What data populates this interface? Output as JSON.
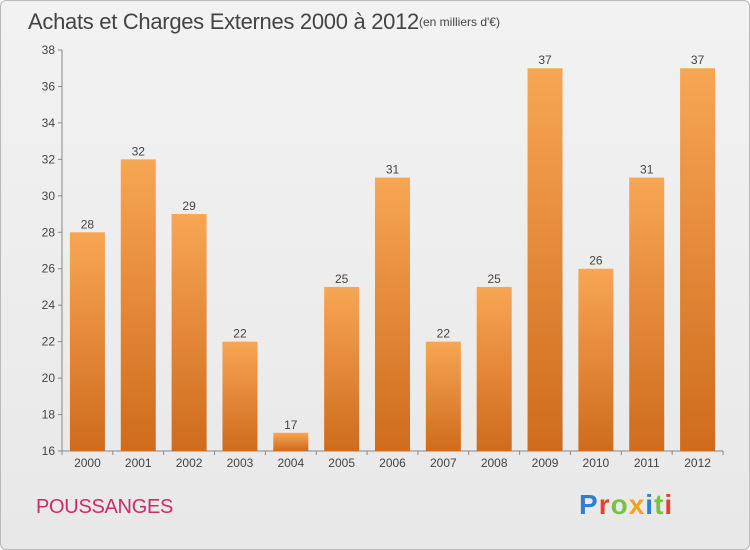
{
  "header": {
    "title": "Achats et Charges Externes 2000 à 2012",
    "subtitle": "(en milliers d'€)"
  },
  "footer": {
    "commune": "POUSSANGES",
    "logo_text": "Proxiti"
  },
  "colors": {
    "bar_light": "#f7a654",
    "bar_dark": "#cf6b1d",
    "commune_text": "#cc2a6c",
    "logo_letters": [
      "#2e7fd1",
      "#e8412f",
      "#7cc241",
      "#f3a31b",
      "#2e7fd1",
      "#7cc241",
      "#e8412f"
    ]
  },
  "chart_data": {
    "type": "bar",
    "categories": [
      "2000",
      "2001",
      "2002",
      "2003",
      "2004",
      "2005",
      "2006",
      "2007",
      "2008",
      "2009",
      "2010",
      "2011",
      "2012"
    ],
    "values": [
      28,
      32,
      29,
      22,
      17,
      25,
      31,
      22,
      25,
      37,
      26,
      31,
      37
    ],
    "data_labels": [
      "28",
      "32",
      "29",
      "22",
      "17",
      "25",
      "31",
      "22",
      "25",
      "37",
      "26",
      "31",
      "37"
    ],
    "ylim": [
      16,
      38
    ],
    "yticks": [
      "16",
      "18",
      "20",
      "22",
      "24",
      "26",
      "28",
      "30",
      "32",
      "34",
      "36",
      "38"
    ],
    "grid": false,
    "legend": "none"
  }
}
